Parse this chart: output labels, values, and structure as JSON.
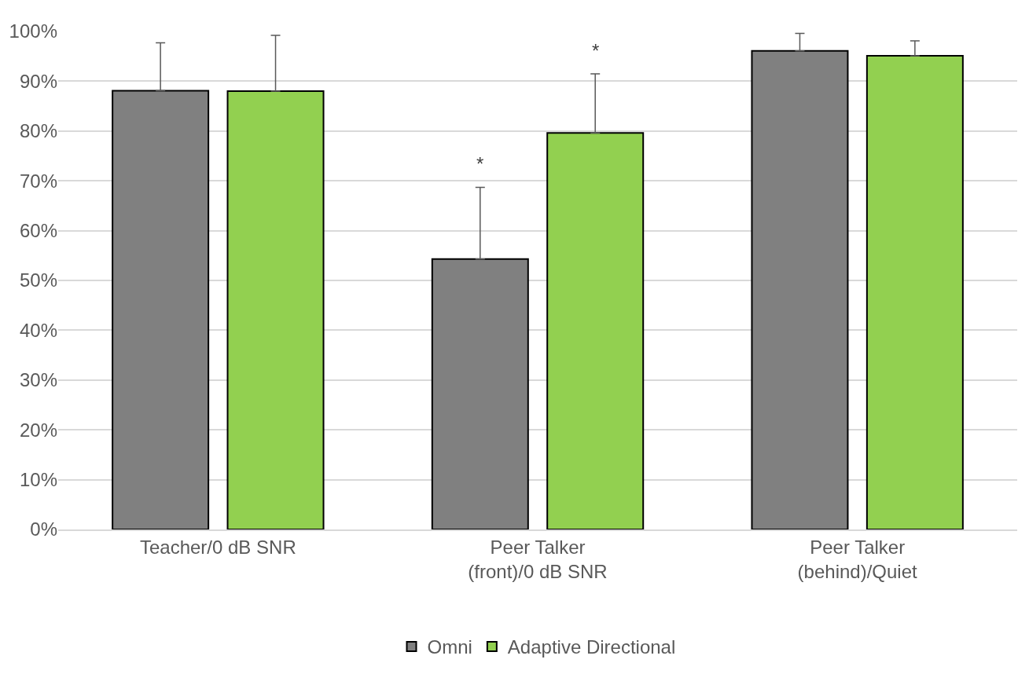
{
  "chart_data": {
    "type": "bar",
    "categories": [
      "Teacher/0 dB SNR",
      "Peer Talker (front)/0 dB SNR",
      "Peer Talker (behind)/Quiet"
    ],
    "series": [
      {
        "name": "Omni",
        "color": "#808080",
        "values": [
          88.1,
          54.3,
          96.1
        ],
        "errors": [
          [
            88.1,
            97.7
          ],
          [
            54.3,
            68.7
          ],
          [
            96.1,
            99.6
          ]
        ]
      },
      {
        "name": "Adaptive Directional",
        "color": "#92d050",
        "values": [
          88.0,
          79.6,
          95.1
        ],
        "errors": [
          [
            88.0,
            99.2
          ],
          [
            79.6,
            91.5
          ],
          [
            95.1,
            98.1
          ]
        ]
      }
    ],
    "ylim": [
      0,
      100
    ],
    "yticks": [
      {
        "value": 0,
        "label": "0%"
      },
      {
        "value": 10,
        "label": "10%"
      },
      {
        "value": 20,
        "label": "20%"
      },
      {
        "value": 30,
        "label": "30%"
      },
      {
        "value": 40,
        "label": "40%"
      },
      {
        "value": 50,
        "label": "50%"
      },
      {
        "value": 60,
        "label": "60%"
      },
      {
        "value": 70,
        "label": "70%"
      },
      {
        "value": 80,
        "label": "80%"
      },
      {
        "value": 90,
        "label": "90%"
      },
      {
        "value": 100,
        "label": "100%"
      }
    ],
    "annotations": [
      "*",
      "*"
    ],
    "grid": "y",
    "legend": "bottom"
  }
}
